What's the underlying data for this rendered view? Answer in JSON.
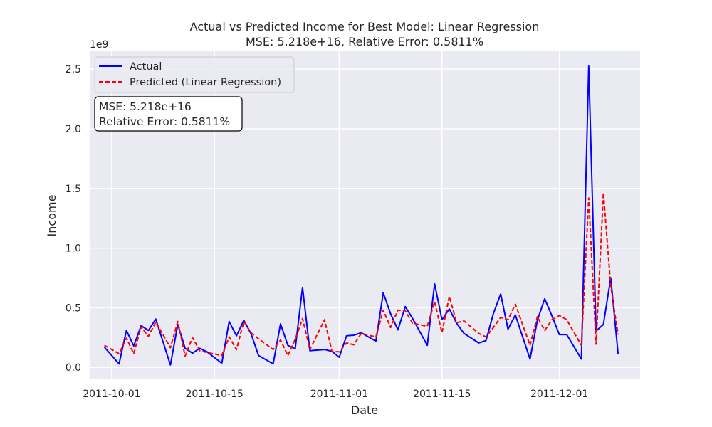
{
  "chart_data": {
    "type": "line",
    "title": "Actual vs Predicted Income for Best Model: Linear Regression",
    "subtitle": "MSE: 5.218e+16, Relative Error: 0.5811%",
    "xlabel": "Date",
    "ylabel": "Income",
    "y_offset_text": "1e9",
    "y_scale": 1000000000,
    "x_axis_type": "date",
    "xlim": [
      "2011-09-28",
      "2011-12-12"
    ],
    "ylim": [
      -100000000.0,
      2650000000.0
    ],
    "x_ticks": [
      "2011-10-01",
      "2011-10-15",
      "2011-11-01",
      "2011-11-15",
      "2011-12-01"
    ],
    "y_ticks": [
      0.0,
      0.5,
      1.0,
      1.5,
      2.0,
      2.5
    ],
    "y_tick_labels": [
      "0.0",
      "0.5",
      "1.0",
      "1.5",
      "2.0",
      "2.5"
    ],
    "grid": true,
    "legend_placement": "top-left",
    "annotation": [
      "MSE: 5.218e+16",
      "Relative Error: 0.5811%"
    ],
    "x": [
      "2011-09-30",
      "2011-10-02",
      "2011-10-03",
      "2011-10-04",
      "2011-10-05",
      "2011-10-06",
      "2011-10-07",
      "2011-10-09",
      "2011-10-10",
      "2011-10-11",
      "2011-10-12",
      "2011-10-13",
      "2011-10-14",
      "2011-10-16",
      "2011-10-17",
      "2011-10-18",
      "2011-10-19",
      "2011-10-20",
      "2011-10-21",
      "2011-10-23",
      "2011-10-24",
      "2011-10-25",
      "2011-10-26",
      "2011-10-27",
      "2011-10-28",
      "2011-10-30",
      "2011-10-31",
      "2011-11-01",
      "2011-11-02",
      "2011-11-03",
      "2011-11-04",
      "2011-11-06",
      "2011-11-07",
      "2011-11-08",
      "2011-11-09",
      "2011-11-10",
      "2011-11-11",
      "2011-11-13",
      "2011-11-14",
      "2011-11-15",
      "2011-11-16",
      "2011-11-17",
      "2011-11-18",
      "2011-11-20",
      "2011-11-21",
      "2011-11-22",
      "2011-11-23",
      "2011-11-24",
      "2011-11-25",
      "2011-11-27",
      "2011-11-28",
      "2011-11-29",
      "2011-11-30",
      "2011-12-01",
      "2011-12-02",
      "2011-12-04",
      "2011-12-05",
      "2011-12-06",
      "2011-12-07",
      "2011-12-08",
      "2011-12-09"
    ],
    "series": [
      {
        "name": "Actual",
        "color": "#0000ff",
        "style": "solid",
        "values": [
          170000000,
          30000000,
          310000000,
          180000000,
          350000000,
          310000000,
          405000000,
          20000000,
          360000000,
          160000000,
          120000000,
          160000000,
          130000000,
          35000000,
          385000000,
          265000000,
          395000000,
          280000000,
          100000000,
          30000000,
          365000000,
          185000000,
          155000000,
          670000000,
          140000000,
          150000000,
          135000000,
          85000000,
          265000000,
          270000000,
          290000000,
          220000000,
          625000000,
          450000000,
          315000000,
          510000000,
          410000000,
          185000000,
          700000000,
          400000000,
          490000000,
          370000000,
          285000000,
          205000000,
          225000000,
          450000000,
          615000000,
          320000000,
          440000000,
          70000000,
          395000000,
          575000000,
          430000000,
          275000000,
          275000000,
          70000000,
          2525000000,
          305000000,
          360000000,
          750000000,
          115000000
        ]
      },
      {
        "name": "Predicted (Linear Regression)",
        "color": "#ff0000",
        "style": "dashed",
        "values": [
          185000000,
          115000000,
          245000000,
          115000000,
          340000000,
          260000000,
          380000000,
          165000000,
          385000000,
          95000000,
          250000000,
          140000000,
          125000000,
          100000000,
          255000000,
          150000000,
          385000000,
          290000000,
          240000000,
          150000000,
          230000000,
          100000000,
          235000000,
          410000000,
          150000000,
          400000000,
          135000000,
          130000000,
          205000000,
          190000000,
          285000000,
          255000000,
          480000000,
          335000000,
          480000000,
          475000000,
          370000000,
          345000000,
          550000000,
          290000000,
          595000000,
          375000000,
          390000000,
          285000000,
          255000000,
          335000000,
          420000000,
          400000000,
          530000000,
          185000000,
          425000000,
          310000000,
          400000000,
          435000000,
          400000000,
          185000000,
          1420000000,
          195000000,
          1465000000,
          680000000,
          275000000
        ]
      }
    ]
  }
}
